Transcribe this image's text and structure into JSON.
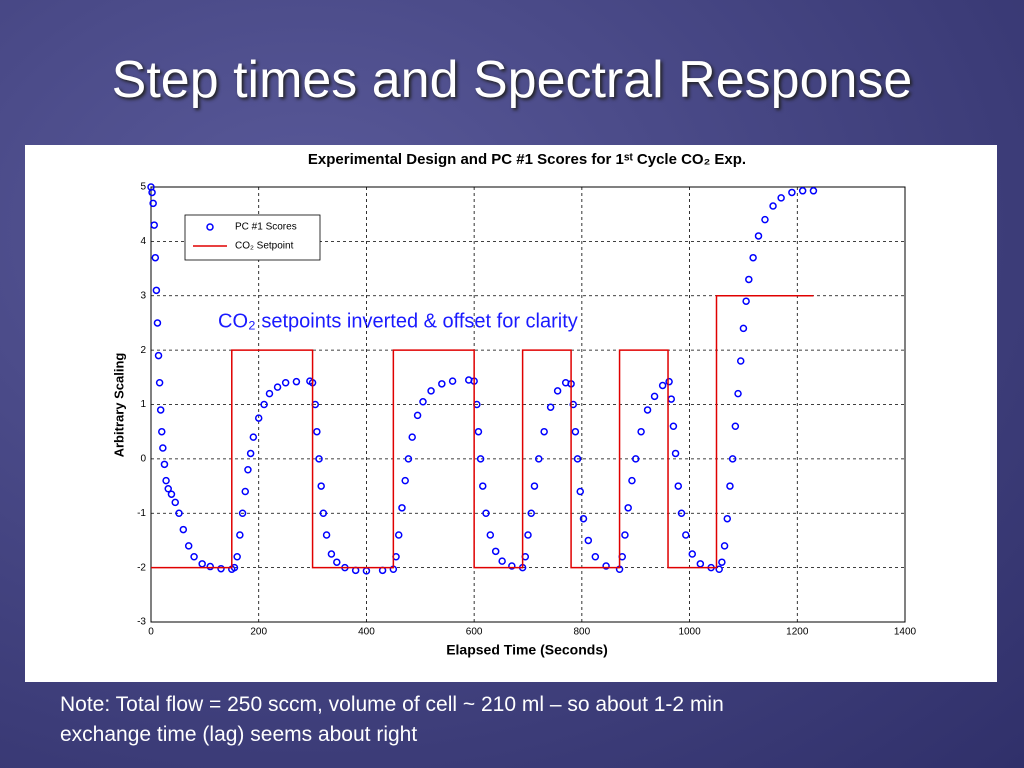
{
  "slide_title": "Step times and Spectral Response",
  "note": [
    "Note: Total flow = 250 sccm, volume of cell ~ 210 ml – so about 1-2 min",
    "exchange time (lag) seems about right"
  ],
  "chart_data": {
    "type": "scatter",
    "title": "Experimental Design and PC #1 Scores for 1ˢᵗ Cycle CO₂ Exp.",
    "x_label": "Elapsed Time (Seconds)",
    "y_label": "Arbitrary Scaling",
    "annotation": "CO₂ setpoints inverted & offset for clarity",
    "xlim": [
      0,
      1400
    ],
    "xticks": [
      0,
      200,
      400,
      600,
      800,
      1000,
      1200,
      1400
    ],
    "ylim": [
      -3,
      5
    ],
    "yticks": [
      -3,
      -2,
      -1,
      0,
      1,
      2,
      3,
      4,
      5
    ],
    "grid": true,
    "legend": "upper left",
    "series": [
      {
        "name": "PC #1 Scores",
        "type": "scatter",
        "color": "#0000ff",
        "x": [
          0,
          2,
          4,
          6,
          8,
          10,
          12,
          14,
          16,
          18,
          20,
          22,
          25,
          28,
          32,
          38,
          45,
          52,
          60,
          70,
          80,
          95,
          110,
          130,
          150,
          155,
          160,
          165,
          170,
          175,
          180,
          185,
          190,
          200,
          210,
          220,
          235,
          250,
          270,
          295,
          300,
          305,
          308,
          312,
          316,
          320,
          326,
          335,
          345,
          360,
          380,
          400,
          430,
          450,
          455,
          460,
          466,
          472,
          478,
          485,
          495,
          505,
          520,
          540,
          560,
          590,
          600,
          605,
          608,
          612,
          616,
          622,
          630,
          640,
          652,
          670,
          690,
          695,
          700,
          706,
          712,
          720,
          730,
          742,
          755,
          770,
          780,
          784,
          788,
          792,
          797,
          803,
          812,
          825,
          845,
          870,
          875,
          880,
          886,
          893,
          900,
          910,
          922,
          935,
          950,
          962,
          966,
          970,
          974,
          979,
          985,
          993,
          1005,
          1020,
          1040,
          1055,
          1060,
          1065,
          1070,
          1075,
          1080,
          1085,
          1090,
          1095,
          1100,
          1105,
          1110,
          1118,
          1128,
          1140,
          1155,
          1170,
          1190,
          1210,
          1230
        ],
        "values": [
          5,
          4.9,
          4.7,
          4.3,
          3.7,
          3.1,
          2.5,
          1.9,
          1.4,
          0.9,
          0.5,
          0.2,
          -0.1,
          -0.4,
          -0.55,
          -0.65,
          -0.8,
          -1.0,
          -1.3,
          -1.6,
          -1.8,
          -1.93,
          -1.98,
          -2.02,
          -2.03,
          -2.0,
          -1.8,
          -1.4,
          -1.0,
          -0.6,
          -0.2,
          0.1,
          0.4,
          0.75,
          1.0,
          1.2,
          1.32,
          1.4,
          1.42,
          1.43,
          1.4,
          1.0,
          0.5,
          0,
          -0.5,
          -1.0,
          -1.4,
          -1.75,
          -1.9,
          -2.0,
          -2.05,
          -2.06,
          -2.05,
          -2.03,
          -1.8,
          -1.4,
          -0.9,
          -0.4,
          0,
          0.4,
          0.8,
          1.05,
          1.25,
          1.38,
          1.43,
          1.45,
          1.43,
          1.0,
          0.5,
          0,
          -0.5,
          -1.0,
          -1.4,
          -1.7,
          -1.88,
          -1.97,
          -2.0,
          -1.8,
          -1.4,
          -1.0,
          -0.5,
          0,
          0.5,
          0.95,
          1.25,
          1.4,
          1.38,
          1.0,
          0.5,
          0,
          -0.6,
          -1.1,
          -1.5,
          -1.8,
          -1.97,
          -2.03,
          -1.8,
          -1.4,
          -0.9,
          -0.4,
          0,
          0.5,
          0.9,
          1.15,
          1.35,
          1.42,
          1.1,
          0.6,
          0.1,
          -0.5,
          -1.0,
          -1.4,
          -1.75,
          -1.93,
          -2.0,
          -2.03,
          -1.9,
          -1.6,
          -1.1,
          -0.5,
          0,
          0.6,
          1.2,
          1.8,
          2.4,
          2.9,
          3.3,
          3.7,
          4.1,
          4.4,
          4.65,
          4.8,
          4.9,
          4.93,
          4.93
        ]
      },
      {
        "name": "CO₂ Setpoint",
        "type": "line",
        "color": "#e00000",
        "x": [
          0,
          150,
          150,
          300,
          300,
          450,
          450,
          600,
          600,
          690,
          690,
          780,
          780,
          870,
          870,
          960,
          960,
          1050,
          1050,
          1230
        ],
        "values": [
          -2,
          -2,
          2,
          2,
          -2,
          -2,
          2,
          2,
          -2,
          -2,
          2,
          2,
          -2,
          -2,
          2,
          2,
          -2,
          -2,
          3,
          3
        ]
      }
    ]
  }
}
